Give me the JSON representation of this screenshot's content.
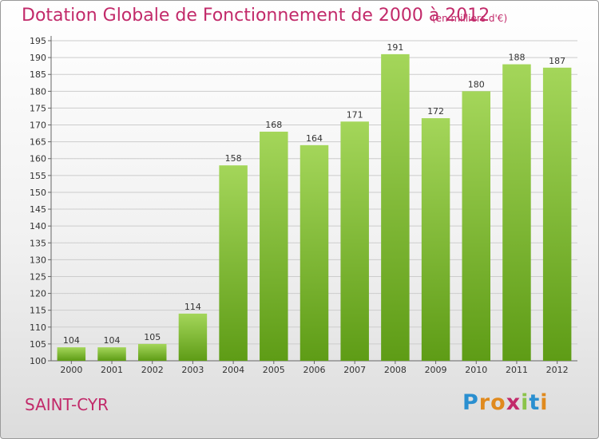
{
  "header": {
    "title": "Dotation Globale de Fonctionnement de 2000 à 2012",
    "subtitle": "(en milliers d'€)"
  },
  "footer": {
    "city": "SAINT-CYR",
    "logo_letters": [
      "P",
      "r",
      "o",
      "x",
      "i",
      "t",
      "i"
    ],
    "logo_colors": [
      "#2a8fd0",
      "#e08a1e",
      "#e08a1e",
      "#c22a6a",
      "#8bc34a",
      "#2a8fd0",
      "#e08a1e"
    ]
  },
  "colors": {
    "bar_top": "#a4d65a",
    "bar_bottom": "#5e9c16",
    "grid": "#cccccc",
    "accent": "#c22a6a"
  },
  "chart_data": {
    "type": "bar",
    "title": "Dotation Globale de Fonctionnement de 2000 à 2012",
    "subtitle": "(en milliers d'€)",
    "categories": [
      "2000",
      "2001",
      "2002",
      "2003",
      "2004",
      "2005",
      "2006",
      "2007",
      "2008",
      "2009",
      "2010",
      "2011",
      "2012"
    ],
    "values": [
      104,
      104,
      105,
      114,
      158,
      168,
      164,
      171,
      191,
      172,
      180,
      188,
      187
    ],
    "ylim": [
      100,
      195
    ],
    "yticks": [
      100,
      105,
      110,
      115,
      120,
      125,
      130,
      135,
      140,
      145,
      150,
      155,
      160,
      165,
      170,
      175,
      180,
      185,
      190,
      195
    ],
    "grid": true,
    "data_labels": true
  }
}
